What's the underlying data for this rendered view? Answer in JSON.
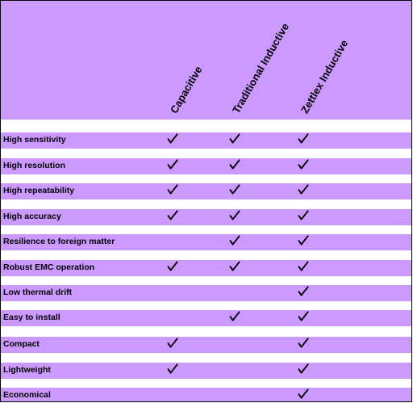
{
  "columns": [
    {
      "label": "Capacitive"
    },
    {
      "label": "Traditional Inductive"
    },
    {
      "label": "Zettlex Inductive"
    }
  ],
  "rows": [
    {
      "label": "High sensitivity",
      "checks": [
        true,
        true,
        true
      ]
    },
    {
      "label": "High resolution",
      "checks": [
        true,
        true,
        true
      ]
    },
    {
      "label": "High repeatability",
      "checks": [
        true,
        true,
        true
      ]
    },
    {
      "label": "High accuracy",
      "checks": [
        true,
        true,
        true
      ]
    },
    {
      "label": "Resilience to foreign matter",
      "checks": [
        false,
        true,
        true
      ]
    },
    {
      "label": "Robust EMC operation",
      "checks": [
        true,
        true,
        true
      ]
    },
    {
      "label": "Low thermal drift",
      "checks": [
        false,
        false,
        true
      ]
    },
    {
      "label": "Easy to install",
      "checks": [
        false,
        true,
        true
      ]
    },
    {
      "label": "Compact",
      "checks": [
        true,
        false,
        true
      ]
    },
    {
      "label": "Lightweight",
      "checks": [
        true,
        false,
        true
      ]
    },
    {
      "label": "Economical",
      "checks": [
        false,
        false,
        true
      ]
    }
  ],
  "colors": {
    "band": "#cc99ff",
    "gap": "#ffffff",
    "text": "#000000"
  },
  "icons": {
    "check": "check-mark-icon"
  }
}
